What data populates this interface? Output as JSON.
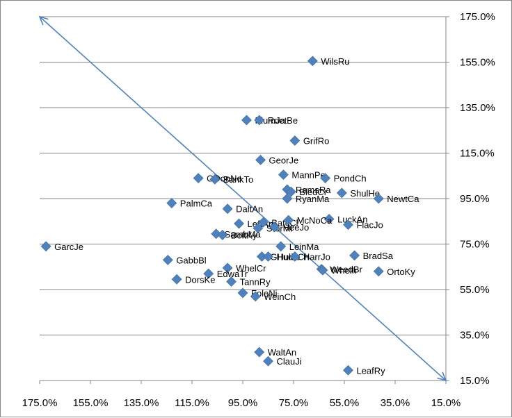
{
  "chart_data": {
    "type": "scatter",
    "title": "",
    "xlabel": "",
    "ylabel": "",
    "x_reversed": true,
    "xlim": [
      175,
      15
    ],
    "ylim": [
      15,
      175
    ],
    "x_ticks": [
      "175.0%",
      "155.0%",
      "135.0%",
      "115.0%",
      "95.0%",
      "75.0%",
      "55.0%",
      "35.0%",
      "15.0%"
    ],
    "y_ticks": [
      "175.0%",
      "155.0%",
      "135.0%",
      "115.0%",
      "95.0%",
      "75.0%",
      "55.0%",
      "35.0%",
      "15.0%"
    ],
    "y_gridlines": true,
    "x_gridlines": false,
    "marker_color": "#4F81BD",
    "arrow_color": "#4F81BD",
    "diagonal_arrow": {
      "from": [
        175,
        175
      ],
      "to": [
        15,
        15
      ],
      "heads": "both"
    },
    "points": [
      {
        "name": "WilsRu",
        "x": 67.5,
        "y": 155.5
      },
      {
        "name": "PlumJa",
        "x": 93.5,
        "y": 129.5
      },
      {
        "name": "RoetBe",
        "x": 88.5,
        "y": 129.5
      },
      {
        "name": "GrifRo",
        "x": 74.5,
        "y": 120.5
      },
      {
        "name": "GeorJe",
        "x": 88.0,
        "y": 112.0
      },
      {
        "name": "ODonNe",
        "x": 112.5,
        "y": 104.0
      },
      {
        "name": "BankTo",
        "x": 106.0,
        "y": 103.5
      },
      {
        "name": "MannPe",
        "x": 79.0,
        "y": 105.5
      },
      {
        "name": "PondCh",
        "x": 62.5,
        "y": 104.0
      },
      {
        "name": "RamsRa",
        "x": 77.5,
        "y": 99.0
      },
      {
        "name": "BledCr",
        "x": 76.0,
        "y": 98.0
      },
      {
        "name": "ShulHe",
        "x": 56.0,
        "y": 97.5
      },
      {
        "name": "RyanMa",
        "x": 77.5,
        "y": 95.0
      },
      {
        "name": "NewtCa",
        "x": 41.5,
        "y": 95.0
      },
      {
        "name": "PalmCa",
        "x": 123.0,
        "y": 93.0
      },
      {
        "name": "DaltAn",
        "x": 101.0,
        "y": 90.5
      },
      {
        "name": "LuckAn",
        "x": 61.0,
        "y": 86.0
      },
      {
        "name": "LeftAn",
        "x": 96.5,
        "y": 84.0
      },
      {
        "name": "BatcCl",
        "x": 87.0,
        "y": 84.5
      },
      {
        "name": "McNoCa",
        "x": 77.0,
        "y": 85.5
      },
      {
        "name": "StorMi",
        "x": 89.0,
        "y": 82.0
      },
      {
        "name": "HeeJo",
        "x": 82.5,
        "y": 82.5
      },
      {
        "name": "FlacJo",
        "x": 53.5,
        "y": 83.5
      },
      {
        "name": "SambMa",
        "x": 105.5,
        "y": 79.5
      },
      {
        "name": "BoltKy",
        "x": 103.0,
        "y": 79.0
      },
      {
        "name": "GarcJe",
        "x": 172.5,
        "y": 74.0
      },
      {
        "name": "LeinMa",
        "x": 80.0,
        "y": 74.0
      },
      {
        "name": "GHulJe",
        "x": 87.5,
        "y": 69.5
      },
      {
        "name": "HudsCh",
        "x": 85.0,
        "y": 69.5
      },
      {
        "name": "HarrJo",
        "x": 74.5,
        "y": 69.5
      },
      {
        "name": "BradSa",
        "x": 51.0,
        "y": 70.0
      },
      {
        "name": "GabbBl",
        "x": 124.5,
        "y": 68.0
      },
      {
        "name": "WhelCr",
        "x": 101.0,
        "y": 64.5
      },
      {
        "name": "WeedBr",
        "x": 64.0,
        "y": 64.0
      },
      {
        "name": "WhelIr",
        "x": 63.5,
        "y": 63.5
      },
      {
        "name": "OrtoKy",
        "x": 41.5,
        "y": 63.0
      },
      {
        "name": "EdwaTr",
        "x": 108.5,
        "y": 62.0
      },
      {
        "name": "DorsKe",
        "x": 121.0,
        "y": 59.5
      },
      {
        "name": "TannRy",
        "x": 99.5,
        "y": 58.5
      },
      {
        "name": "FoleNi",
        "x": 95.0,
        "y": 53.5
      },
      {
        "name": "WeinCh",
        "x": 90.0,
        "y": 52.0
      },
      {
        "name": "WaltAn",
        "x": 88.5,
        "y": 27.5
      },
      {
        "name": "ClauJi",
        "x": 85.0,
        "y": 23.5
      },
      {
        "name": "LeafRy",
        "x": 53.5,
        "y": 19.5
      }
    ]
  }
}
